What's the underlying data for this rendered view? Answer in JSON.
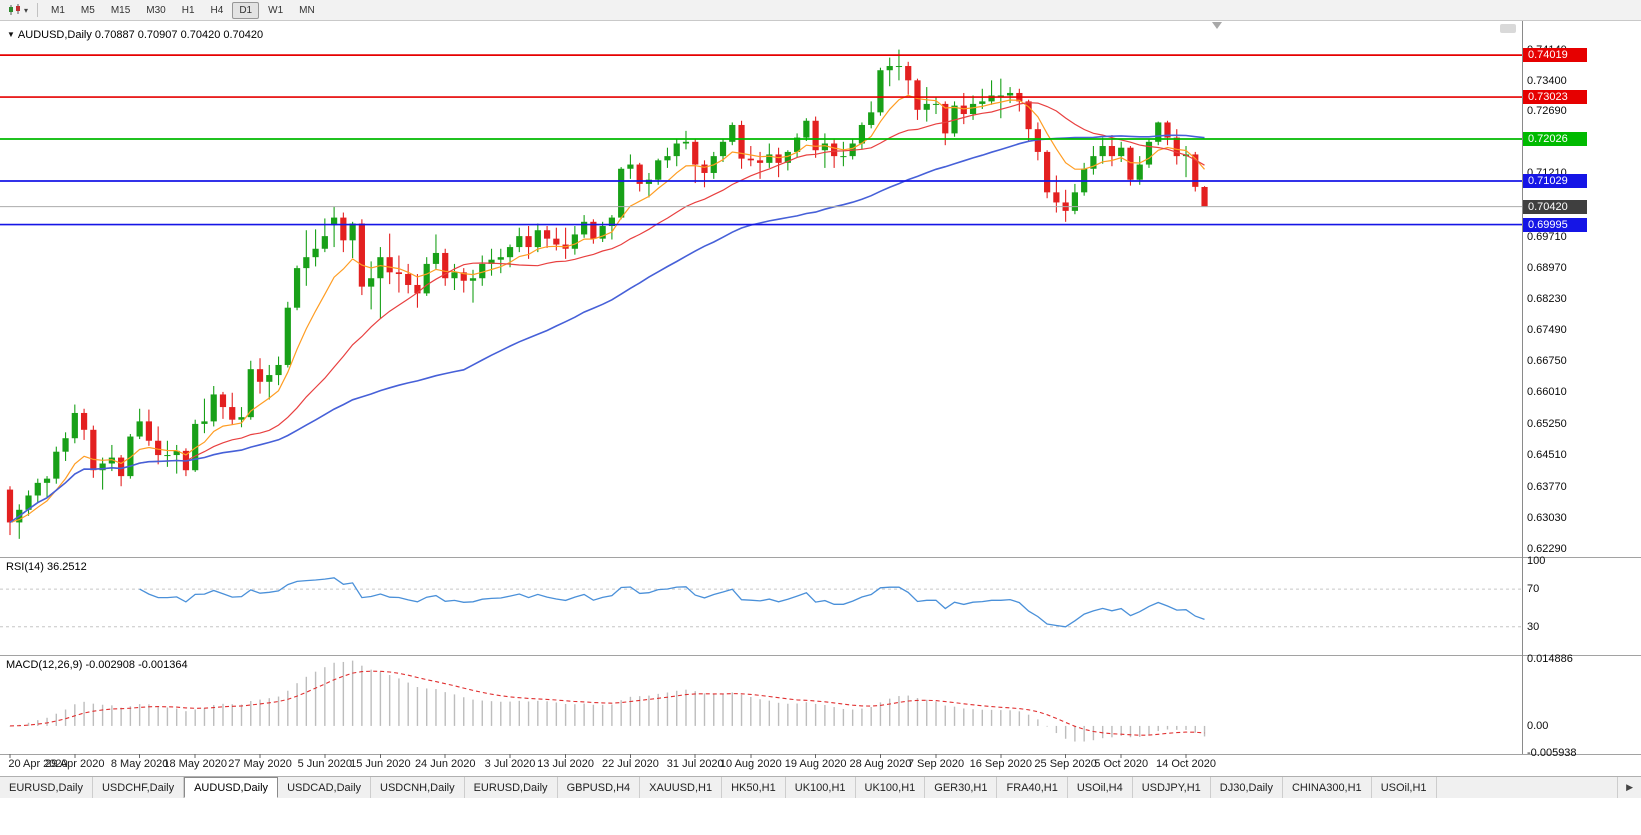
{
  "toolbar": {
    "timeframes": [
      {
        "label": "M1",
        "active": false
      },
      {
        "label": "M5",
        "active": false
      },
      {
        "label": "M15",
        "active": false
      },
      {
        "label": "M30",
        "active": false
      },
      {
        "label": "H1",
        "active": false
      },
      {
        "label": "H4",
        "active": false
      },
      {
        "label": "D1",
        "active": true
      },
      {
        "label": "W1",
        "active": false
      },
      {
        "label": "MN",
        "active": false
      }
    ],
    "chart_icon_caret": "▾"
  },
  "tabbar": {
    "scroll_right_icon": "▶"
  },
  "tabs": [
    {
      "label": "EURUSD,Daily",
      "active": false
    },
    {
      "label": "USDCHF,Daily",
      "active": false
    },
    {
      "label": "AUDUSD,Daily",
      "active": true
    },
    {
      "label": "USDCAD,Daily",
      "active": false
    },
    {
      "label": "USDCNH,Daily",
      "active": false
    },
    {
      "label": "EURUSD,Daily",
      "active": false
    },
    {
      "label": "GBPUSD,H4",
      "active": false
    },
    {
      "label": "XAUUSD,H1",
      "active": false
    },
    {
      "label": "HK50,H1",
      "active": false
    },
    {
      "label": "UK100,H1",
      "active": false
    },
    {
      "label": "UK100,H1",
      "active": false
    },
    {
      "label": "GER30,H1",
      "active": false
    },
    {
      "label": "FRA40,H1",
      "active": false
    },
    {
      "label": "USOil,H4",
      "active": false
    },
    {
      "label": "USDJPY,H1",
      "active": false
    },
    {
      "label": "DJ30,Daily",
      "active": false
    },
    {
      "label": "CHINA300,H1",
      "active": false
    },
    {
      "label": "USOil,H1",
      "active": false
    }
  ],
  "chart_data": {
    "type": "candlestick",
    "symbol": "AUDUSD",
    "period": "Daily",
    "collapse_icon": "▼",
    "ohlc_title": "AUDUSD,Daily  0.70887 0.70907 0.70420 0.70420",
    "ylim": [
      0.62099,
      0.74853
    ],
    "price_axis_ticks": [
      "0.74140",
      "0.73400",
      "0.72690",
      "0.71940",
      "0.71210",
      "0.70450",
      "0.69710",
      "0.68970",
      "0.68230",
      "0.67490",
      "0.66750",
      "0.66010",
      "0.65250",
      "0.64510",
      "0.63770",
      "0.63030",
      "0.62290"
    ],
    "x_labels": [
      "20 Apr 2020",
      "29 Apr 2020",
      "8 May 2020",
      "18 May 2020",
      "27 May 2020",
      "5 Jun 2020",
      "15 Jun 2020",
      "24 Jun 2020",
      "3 Jul 2020",
      "13 Jul 2020",
      "22 Jul 2020",
      "31 Jul 2020",
      "10 Aug 2020",
      "19 Aug 2020",
      "28 Aug 2020",
      "7 Sep 2020",
      "16 Sep 2020",
      "25 Sep 2020",
      "5 Oct 2020",
      "14 Oct 2020"
    ],
    "x_label_bars": [
      0,
      7,
      14,
      20,
      27,
      34,
      40,
      47,
      54,
      60,
      67,
      74,
      80,
      87,
      94,
      100,
      107,
      114,
      120,
      127
    ],
    "candle_colors": {
      "up": "#18A018",
      "down": "#E32020"
    },
    "candles": [
      [
        0.637,
        0.6378,
        0.6262,
        0.6292
      ],
      [
        0.6292,
        0.6335,
        0.6253,
        0.6322
      ],
      [
        0.6322,
        0.6368,
        0.6308,
        0.6356
      ],
      [
        0.6356,
        0.6396,
        0.6338,
        0.6386
      ],
      [
        0.6386,
        0.6402,
        0.6352,
        0.6396
      ],
      [
        0.6396,
        0.6472,
        0.6384,
        0.646
      ],
      [
        0.646,
        0.6506,
        0.6438,
        0.6492
      ],
      [
        0.6492,
        0.6572,
        0.648,
        0.6552
      ],
      [
        0.6552,
        0.6562,
        0.6488,
        0.6512
      ],
      [
        0.6512,
        0.6522,
        0.6398,
        0.6416
      ],
      [
        0.6416,
        0.6446,
        0.637,
        0.6432
      ],
      [
        0.6432,
        0.6476,
        0.6414,
        0.6446
      ],
      [
        0.6446,
        0.6452,
        0.6378,
        0.6402
      ],
      [
        0.6402,
        0.6502,
        0.6396,
        0.6496
      ],
      [
        0.6496,
        0.6562,
        0.649,
        0.6532
      ],
      [
        0.6532,
        0.656,
        0.6474,
        0.6486
      ],
      [
        0.6486,
        0.652,
        0.643,
        0.6452
      ],
      [
        0.6452,
        0.6486,
        0.6424,
        0.6452
      ],
      [
        0.6452,
        0.6476,
        0.6408,
        0.6462
      ],
      [
        0.6462,
        0.6468,
        0.6402,
        0.6416
      ],
      [
        0.6416,
        0.6536,
        0.6412,
        0.6526
      ],
      [
        0.6526,
        0.6586,
        0.6504,
        0.6532
      ],
      [
        0.6532,
        0.6616,
        0.652,
        0.6596
      ],
      [
        0.6596,
        0.6602,
        0.6538,
        0.6566
      ],
      [
        0.6566,
        0.66,
        0.6524,
        0.6536
      ],
      [
        0.6536,
        0.6566,
        0.6518,
        0.6542
      ],
      [
        0.6542,
        0.6676,
        0.6536,
        0.6656
      ],
      [
        0.6656,
        0.6682,
        0.6598,
        0.6626
      ],
      [
        0.6626,
        0.6666,
        0.6584,
        0.6642
      ],
      [
        0.6642,
        0.6686,
        0.6618,
        0.6666
      ],
      [
        0.6666,
        0.6816,
        0.666,
        0.6802
      ],
      [
        0.6802,
        0.6902,
        0.6796,
        0.6896
      ],
      [
        0.6896,
        0.6986,
        0.6854,
        0.6922
      ],
      [
        0.6922,
        0.6988,
        0.69,
        0.6942
      ],
      [
        0.6942,
        0.7014,
        0.6934,
        0.6972
      ],
      [
        0.6998,
        0.7042,
        0.6946,
        0.7016
      ],
      [
        0.7016,
        0.7028,
        0.6934,
        0.6962
      ],
      [
        0.6962,
        0.7006,
        0.692,
        0.7002
      ],
      [
        0.7002,
        0.7012,
        0.6832,
        0.6852
      ],
      [
        0.6852,
        0.6912,
        0.6798,
        0.6872
      ],
      [
        0.6872,
        0.6946,
        0.6776,
        0.6922
      ],
      [
        0.6922,
        0.6978,
        0.6858,
        0.6886
      ],
      [
        0.6886,
        0.6926,
        0.6838,
        0.6882
      ],
      [
        0.6882,
        0.6906,
        0.6836,
        0.6856
      ],
      [
        0.6856,
        0.6882,
        0.6802,
        0.6836
      ],
      [
        0.6836,
        0.6922,
        0.683,
        0.6906
      ],
      [
        0.6906,
        0.6976,
        0.6894,
        0.6932
      ],
      [
        0.6932,
        0.6942,
        0.6854,
        0.6872
      ],
      [
        0.6872,
        0.6906,
        0.6844,
        0.6886
      ],
      [
        0.6886,
        0.6896,
        0.6838,
        0.6866
      ],
      [
        0.6866,
        0.6892,
        0.6814,
        0.6872
      ],
      [
        0.6872,
        0.6926,
        0.6854,
        0.6906
      ],
      [
        0.6906,
        0.6942,
        0.6878,
        0.6916
      ],
      [
        0.6916,
        0.6942,
        0.6884,
        0.6922
      ],
      [
        0.6922,
        0.6952,
        0.6898,
        0.6946
      ],
      [
        0.6946,
        0.6992,
        0.6934,
        0.6972
      ],
      [
        0.6972,
        0.6996,
        0.6918,
        0.6946
      ],
      [
        0.6946,
        0.7002,
        0.6934,
        0.6986
      ],
      [
        0.6986,
        0.6996,
        0.6944,
        0.6966
      ],
      [
        0.6966,
        0.6992,
        0.6938,
        0.6952
      ],
      [
        0.6952,
        0.6992,
        0.6918,
        0.6942
      ],
      [
        0.6942,
        0.6996,
        0.6928,
        0.6976
      ],
      [
        0.6976,
        0.7022,
        0.6968,
        0.7006
      ],
      [
        0.7006,
        0.7012,
        0.6954,
        0.6966
      ],
      [
        0.6966,
        0.7006,
        0.6958,
        0.6996
      ],
      [
        0.6996,
        0.7022,
        0.6964,
        0.7016
      ],
      [
        0.7016,
        0.7136,
        0.7012,
        0.7132
      ],
      [
        0.7132,
        0.7166,
        0.7108,
        0.7142
      ],
      [
        0.7142,
        0.7146,
        0.7078,
        0.7096
      ],
      [
        0.7096,
        0.7122,
        0.7064,
        0.7106
      ],
      [
        0.7106,
        0.7156,
        0.7094,
        0.7152
      ],
      [
        0.7152,
        0.7182,
        0.7134,
        0.7162
      ],
      [
        0.7162,
        0.7202,
        0.7138,
        0.7192
      ],
      [
        0.7192,
        0.7222,
        0.7178,
        0.7196
      ],
      [
        0.7196,
        0.7202,
        0.7098,
        0.7142
      ],
      [
        0.7142,
        0.7152,
        0.7088,
        0.7122
      ],
      [
        0.7122,
        0.7172,
        0.7108,
        0.7162
      ],
      [
        0.7162,
        0.7202,
        0.7148,
        0.7196
      ],
      [
        0.7196,
        0.7242,
        0.7188,
        0.7236
      ],
      [
        0.7236,
        0.7246,
        0.7132,
        0.7156
      ],
      [
        0.7156,
        0.7186,
        0.7138,
        0.7152
      ],
      [
        0.7152,
        0.7172,
        0.7108,
        0.7146
      ],
      [
        0.7146,
        0.7192,
        0.7134,
        0.7166
      ],
      [
        0.7166,
        0.7182,
        0.7112,
        0.7146
      ],
      [
        0.7146,
        0.7176,
        0.7128,
        0.7172
      ],
      [
        0.7172,
        0.7216,
        0.7158,
        0.7206
      ],
      [
        0.7206,
        0.7252,
        0.7198,
        0.7246
      ],
      [
        0.7246,
        0.7256,
        0.7158,
        0.7176
      ],
      [
        0.7176,
        0.7216,
        0.7134,
        0.7192
      ],
      [
        0.7192,
        0.7202,
        0.7134,
        0.7162
      ],
      [
        0.7162,
        0.7196,
        0.7138,
        0.7162
      ],
      [
        0.7162,
        0.7202,
        0.7154,
        0.7192
      ],
      [
        0.7192,
        0.7242,
        0.7178,
        0.7236
      ],
      [
        0.7236,
        0.7292,
        0.7228,
        0.7266
      ],
      [
        0.7266,
        0.7372,
        0.7258,
        0.7366
      ],
      [
        0.7366,
        0.7396,
        0.7328,
        0.7376
      ],
      [
        0.7376,
        0.7415,
        0.7342,
        0.7376
      ],
      [
        0.7376,
        0.7386,
        0.7308,
        0.7342
      ],
      [
        0.7342,
        0.7346,
        0.7248,
        0.7272
      ],
      [
        0.7272,
        0.7326,
        0.7244,
        0.7286
      ],
      [
        0.7286,
        0.7302,
        0.7262,
        0.7286
      ],
      [
        0.7286,
        0.7292,
        0.7188,
        0.7216
      ],
      [
        0.7216,
        0.7292,
        0.7208,
        0.7282
      ],
      [
        0.7282,
        0.7312,
        0.7238,
        0.7262
      ],
      [
        0.7262,
        0.7306,
        0.7248,
        0.7286
      ],
      [
        0.7286,
        0.7322,
        0.7274,
        0.7292
      ],
      [
        0.7292,
        0.7342,
        0.7284,
        0.7306
      ],
      [
        0.7306,
        0.7346,
        0.7252,
        0.7306
      ],
      [
        0.7306,
        0.7326,
        0.7288,
        0.7312
      ],
      [
        0.7312,
        0.7322,
        0.7268,
        0.7292
      ],
      [
        0.7292,
        0.7296,
        0.7198,
        0.7226
      ],
      [
        0.7226,
        0.7242,
        0.7152,
        0.7172
      ],
      [
        0.7172,
        0.7176,
        0.7062,
        0.7076
      ],
      [
        0.7076,
        0.7116,
        0.7028,
        0.7052
      ],
      [
        0.7052,
        0.7082,
        0.7006,
        0.7032
      ],
      [
        0.7032,
        0.7096,
        0.7024,
        0.7076
      ],
      [
        0.7076,
        0.7146,
        0.7068,
        0.7132
      ],
      [
        0.7132,
        0.7186,
        0.7118,
        0.7162
      ],
      [
        0.7162,
        0.7206,
        0.7144,
        0.7186
      ],
      [
        0.7186,
        0.7212,
        0.7138,
        0.7162
      ],
      [
        0.7162,
        0.7196,
        0.7148,
        0.7182
      ],
      [
        0.7182,
        0.7186,
        0.7092,
        0.7106
      ],
      [
        0.7106,
        0.7162,
        0.7094,
        0.7142
      ],
      [
        0.7142,
        0.7202,
        0.7134,
        0.7196
      ],
      [
        0.7196,
        0.7244,
        0.7188,
        0.7242
      ],
      [
        0.7242,
        0.7246,
        0.7188,
        0.7206
      ],
      [
        0.7206,
        0.7226,
        0.7142,
        0.7162
      ],
      [
        0.7162,
        0.7186,
        0.7112,
        0.7166
      ],
      [
        0.7166,
        0.7172,
        0.7078,
        0.7089
      ],
      [
        0.70887,
        0.70907,
        0.7042,
        0.7042
      ]
    ],
    "moving_averages": [
      {
        "type": "ema",
        "period": 8,
        "color": "#FF9D23"
      },
      {
        "type": "sma",
        "period": 20,
        "color": "#E84040"
      },
      {
        "type": "sma",
        "period": 50,
        "color": "#4660D8"
      }
    ],
    "levels": [
      {
        "price": 0.74019,
        "label": "0.74019",
        "color": "#E60000"
      },
      {
        "price": 0.73023,
        "label": "0.73023",
        "color": "#E60000"
      },
      {
        "price": 0.72026,
        "label": "0.72026",
        "color": "#00BA00"
      },
      {
        "price": 0.71029,
        "label": "0.71029",
        "color": "#1515E6"
      },
      {
        "price": 0.69995,
        "label": "0.69995",
        "color": "#1515E6"
      }
    ],
    "current_price": {
      "price": 0.7042,
      "label": "0.70420",
      "line_color": "#ABABAB",
      "box_color": "#3F3F3F"
    },
    "rsi": {
      "label": "RSI(14) 36.2512",
      "period": 14,
      "color": "#4A90D9",
      "ylim": [
        0,
        103
      ],
      "dashed_levels": [
        70,
        30
      ],
      "axis_ticks": [
        {
          "v": 100,
          "label": "100"
        },
        {
          "v": 70,
          "label": "70"
        },
        {
          "v": 30,
          "label": "30"
        }
      ]
    },
    "macd": {
      "label": "MACD(12,26,9) -0.002908 -0.001364",
      "fast": 12,
      "slow": 26,
      "signal": 9,
      "hist_color": "#BDBDBD",
      "signal_color": "#E03030",
      "ylim": [
        -0.006239,
        0.015534
      ],
      "axis_ticks": [
        {
          "v": 0.014886,
          "label": "0.014886"
        },
        {
          "v": 0,
          "label": "0.00"
        },
        {
          "v": -0.005938,
          "label": "-0.005938"
        }
      ]
    }
  }
}
